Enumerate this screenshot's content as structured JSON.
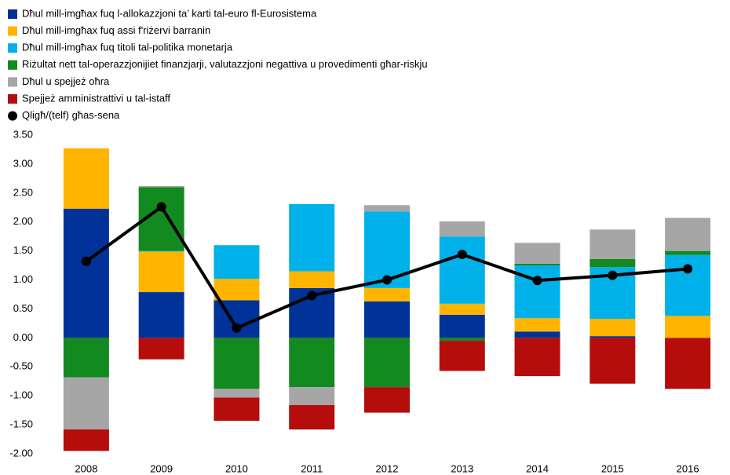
{
  "chart_data": {
    "type": "stacked_bar_line",
    "categories": [
      "2008",
      "2009",
      "2010",
      "2011",
      "2012",
      "2013",
      "2014",
      "2015",
      "2016"
    ],
    "series": [
      {
        "name": "Dħul mill-imgħax fuq l-allokazzjoni ta’ karti tal-euro fl-Eurosistema",
        "color": "#003299",
        "values": [
          2.23,
          0.79,
          0.65,
          0.86,
          0.63,
          0.4,
          0.11,
          0.03,
          0
        ]
      },
      {
        "name": "Dħul mill-imgħax fuq assi f'riżervi barranin",
        "color": "#ffb400",
        "values": [
          1.04,
          0.7,
          0.37,
          0.29,
          0.23,
          0.19,
          0.23,
          0.3,
          0.38
        ]
      },
      {
        "name": "Dħul mill-imgħax fuq titoli tal-politika monetarja",
        "color": "#00b1ea",
        "values": [
          0,
          0.01,
          0.58,
          1.16,
          1.32,
          1.16,
          0.91,
          0.89,
          1.05
        ]
      },
      {
        "name": "Riżultat nett tal-operazzjonijiet finanzjarji, valutazzjoni negattiva u provedimenti għar-riskju",
        "color": "#138a1f",
        "values": [
          -0.68,
          1.1,
          -0.88,
          -0.85,
          -0.85,
          -0.05,
          0.03,
          0.14,
          0.07
        ]
      },
      {
        "name": "Dħul u spejjeż oħra",
        "color": "#a6a6a6",
        "values": [
          -0.9,
          0.02,
          -0.15,
          -0.31,
          0.11,
          0.26,
          0.36,
          0.51,
          0.57
        ]
      },
      {
        "name": "Spejjeż amministrattivi u tal-istaff",
        "color": "#b50c0c",
        "values": [
          -0.37,
          -0.37,
          -0.4,
          -0.42,
          -0.44,
          -0.52,
          -0.66,
          -0.79,
          -0.88
        ]
      }
    ],
    "line": {
      "name": "Qligħ/(telf) għas-sena",
      "color": "#000000",
      "values": [
        1.32,
        2.26,
        0.17,
        0.73,
        1.0,
        1.44,
        0.99,
        1.08,
        1.19
      ]
    },
    "ylim": [
      -2,
      3.5
    ],
    "yticks": [
      {
        "value": -2,
        "label": "-2.00"
      },
      {
        "value": -1.5,
        "label": "-1.50"
      },
      {
        "value": -1,
        "label": "-1.00"
      },
      {
        "value": -0.5,
        "label": "-0.50"
      },
      {
        "value": 0,
        "label": "0.00"
      },
      {
        "value": 0.5,
        "label": "0.50"
      },
      {
        "value": 1,
        "label": "1.00"
      },
      {
        "value": 1.5,
        "label": "1.50"
      },
      {
        "value": 2,
        "label": "2.00"
      },
      {
        "value": 2.5,
        "label": "2.50"
      },
      {
        "value": 3,
        "label": "3.00"
      },
      {
        "value": 3.5,
        "label": "3.50"
      }
    ],
    "grid": false,
    "legend": "top-left"
  }
}
